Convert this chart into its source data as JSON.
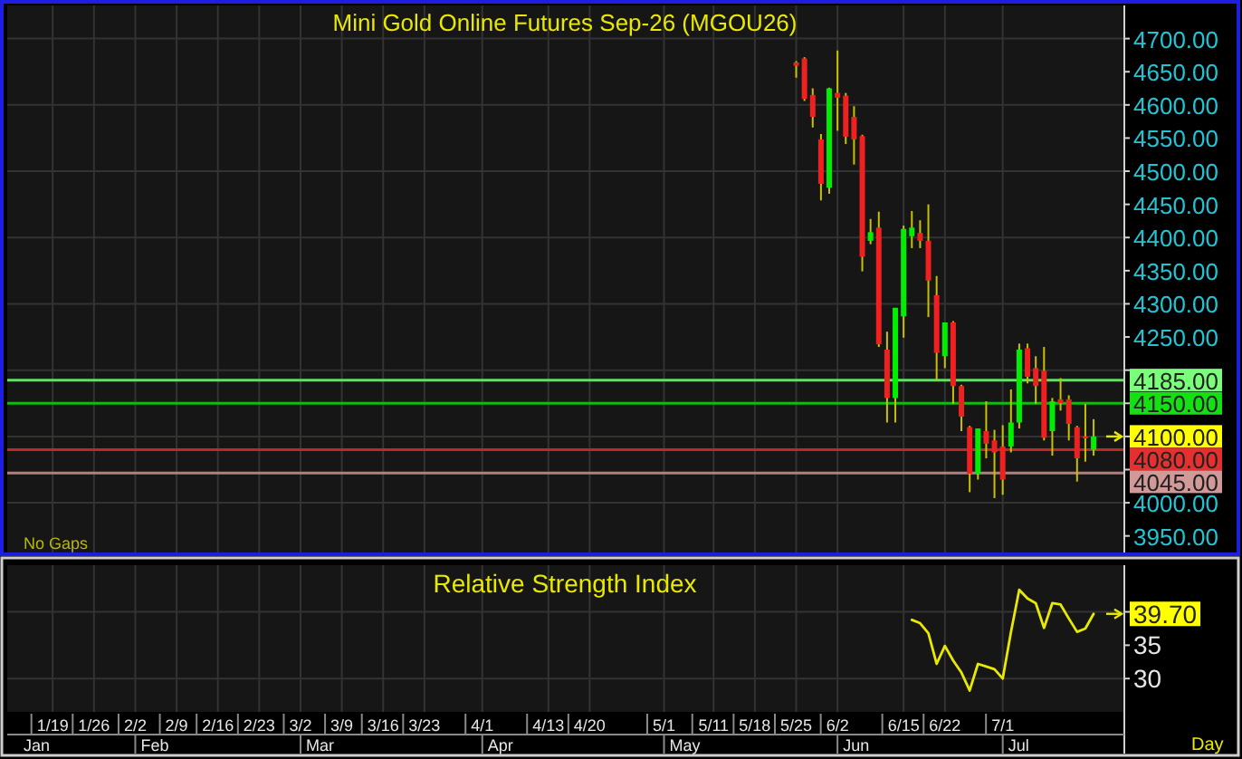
{
  "chart_data": [
    {
      "type": "candlestick",
      "title": "Mini Gold Online Futures Sep-26 (MGOU26)",
      "categories": [
        null,
        null,
        null,
        null,
        null,
        null,
        null,
        null,
        null,
        null,
        null,
        null,
        null,
        null,
        null,
        null,
        null,
        null,
        null,
        null,
        null,
        null,
        null,
        null,
        null,
        null,
        null,
        null,
        null,
        null,
        null,
        null,
        null,
        null,
        null,
        null,
        null,
        null,
        null,
        null,
        null,
        null,
        null,
        null,
        null,
        null,
        null,
        null,
        null,
        null,
        null,
        null,
        null,
        null,
        null,
        null,
        null,
        null,
        null,
        null,
        null,
        null,
        null,
        null,
        null,
        null,
        null,
        null,
        null,
        null,
        null,
        null,
        null,
        null,
        null,
        null,
        null,
        null,
        null,
        null,
        null,
        null,
        null,
        null,
        null,
        null,
        null,
        null,
        null,
        null,
        null,
        null,
        null,
        null,
        null,
        null,
        null,
        null,
        null,
        null,
        null,
        null,
        null,
        null,
        null,
        null,
        null,
        null,
        null,
        null,
        null,
        null,
        null,
        null,
        null,
        null,
        null,
        null,
        null,
        null,
        null,
        null,
        null,
        null,
        null,
        null,
        null,
        null,
        null,
        null,
        null,
        null,
        null,
        null,
        null
      ],
      "ohlc": [
        null,
        null,
        null,
        null,
        null,
        null,
        null,
        null,
        null,
        null,
        null,
        null,
        null,
        null,
        null,
        null,
        null,
        null,
        null,
        null,
        null,
        null,
        null,
        null,
        null,
        null,
        null,
        null,
        null,
        null,
        null,
        null,
        null,
        null,
        null,
        null,
        null,
        null,
        null,
        null,
        null,
        null,
        null,
        null,
        null,
        null,
        null,
        null,
        null,
        null,
        null,
        null,
        null,
        null,
        null,
        null,
        null,
        null,
        null,
        null,
        null,
        null,
        null,
        null,
        null,
        null,
        null,
        null,
        null,
        null,
        null,
        null,
        null,
        null,
        null,
        null,
        null,
        null,
        null,
        null,
        null,
        null,
        null,
        null,
        null,
        null,
        null,
        null,
        null,
        null,
        null,
        null,
        null,
        null,
        null,
        [
          4664,
          4666,
          4641,
          4659
        ],
        [
          4670,
          4672,
          4606,
          4609
        ],
        [
          4615,
          4625,
          4566,
          4582
        ],
        [
          4548,
          4556,
          4456,
          4481
        ],
        [
          4475,
          4626,
          4466,
          4625
        ],
        [
          4618,
          4682,
          4561,
          4611
        ],
        [
          4614,
          4618,
          4541,
          4552
        ],
        [
          4582,
          4598,
          4510,
          4548
        ],
        [
          4553,
          4555,
          4349,
          4371
        ],
        [
          4395,
          4428,
          4390,
          4408
        ],
        [
          4415,
          4439,
          4235,
          4239
        ],
        [
          4231,
          4258,
          4121,
          4158
        ],
        [
          4158,
          4294,
          4121,
          4294
        ],
        [
          4281,
          4418,
          4249,
          4413
        ],
        [
          4402,
          4440,
          4384,
          4415
        ],
        [
          4407,
          4426,
          4384,
          4395
        ],
        [
          4395,
          4450,
          4280,
          4335
        ],
        [
          4313,
          4342,
          4184,
          4226
        ],
        [
          4221,
          4272,
          4203,
          4272
        ],
        [
          4272,
          4274,
          4149,
          4176
        ],
        [
          4176,
          4178,
          4108,
          4130
        ],
        [
          4114,
          4116,
          4016,
          4044
        ],
        [
          4044,
          4112,
          4035,
          4112
        ],
        [
          4108,
          4153,
          4067,
          4089
        ],
        [
          4094,
          4110,
          4007,
          4076
        ],
        [
          4085,
          4117,
          4012,
          4035
        ],
        [
          4085,
          4171,
          4076,
          4121
        ],
        [
          4121,
          4240,
          4112,
          4231
        ],
        [
          4233,
          4240,
          4180,
          4190
        ],
        [
          4203,
          4221,
          4149,
          4176
        ],
        [
          4199,
          4235,
          4094,
          4098
        ],
        [
          4108,
          4158,
          4071,
          4153
        ],
        [
          4156,
          4188,
          4139,
          4150
        ],
        [
          4156,
          4162,
          4094,
          4119
        ],
        [
          4114,
          4116,
          4032,
          4067
        ],
        [
          4100,
          4149,
          4062,
          4100
        ],
        [
          4080,
          4126,
          4071,
          4100
        ],
        null,
        null,
        null
      ],
      "colors": [
        null,
        null,
        null,
        null,
        null,
        null,
        null,
        null,
        null,
        null,
        null,
        null,
        null,
        null,
        null,
        null,
        null,
        null,
        null,
        null,
        null,
        null,
        null,
        null,
        null,
        null,
        null,
        null,
        null,
        null,
        null,
        null,
        null,
        null,
        null,
        null,
        null,
        null,
        null,
        null,
        null,
        null,
        null,
        null,
        null,
        null,
        null,
        null,
        null,
        null,
        null,
        null,
        null,
        null,
        null,
        null,
        null,
        null,
        null,
        null,
        null,
        null,
        null,
        null,
        null,
        null,
        null,
        null,
        null,
        null,
        null,
        null,
        null,
        null,
        null,
        null,
        null,
        null,
        null,
        null,
        null,
        null,
        null,
        null,
        null,
        null,
        null,
        null,
        null,
        null,
        null,
        null,
        null,
        null,
        null,
        "#ee2020",
        "#ee2020",
        "#ee2020",
        "#ee2020",
        "#00ee00",
        "#ee2020",
        "#ee2020",
        "#ee2020",
        "#ee2020",
        "#00ee00",
        "#ee2020",
        "#ee2020",
        "#00ee00",
        "#00ee00",
        "#00ee00",
        "#ee2020",
        "#ee2020",
        "#ee2020",
        "#00ee00",
        "#ee2020",
        "#ee2020",
        "#ee2020",
        "#00ee00",
        "#ee2020",
        "#ee2020",
        "#ee2020",
        "#00ee00",
        "#00ee00",
        "#ee2020",
        "#ee2020",
        "#ee2020",
        "#00ee00",
        "#ee2020",
        "#ee2020",
        "#ee2020",
        "#ee2020",
        "#00ee00",
        null,
        null,
        null
      ],
      "value_labels": [
        null,
        null,
        null,
        null,
        null,
        null,
        null,
        null,
        null,
        null,
        null,
        null,
        null,
        null,
        null,
        null,
        null,
        null,
        null,
        null,
        null,
        null,
        null,
        null,
        null,
        null,
        null,
        null,
        null,
        null,
        null,
        null,
        null,
        null,
        null,
        null,
        null,
        null,
        null,
        null,
        null,
        null,
        null,
        null,
        null,
        null,
        null,
        null,
        null,
        null,
        null,
        null,
        null,
        null,
        null,
        null,
        null,
        null,
        null,
        null,
        null,
        null,
        null,
        null,
        null,
        null,
        null,
        null,
        null,
        null,
        null,
        null,
        null,
        null,
        null,
        null,
        null,
        null,
        null,
        null,
        null,
        null,
        null,
        null,
        null,
        null,
        null,
        null,
        null,
        null,
        null,
        null,
        null,
        null,
        null,
        null,
        null,
        null,
        null,
        null,
        null,
        null,
        null,
        null,
        null,
        null,
        null,
        null,
        null,
        null,
        null,
        null,
        null,
        null,
        null,
        null,
        null,
        null,
        null,
        null,
        null,
        null,
        null,
        null,
        null,
        null,
        null,
        null,
        null,
        null,
        null,
        "4100.00",
        null,
        null,
        null
      ],
      "color": "#c8c000",
      "ylim": [
        3925,
        4750
      ],
      "yticks": [
        {
          "value": 3950,
          "label": "3950.00"
        },
        {
          "value": 4000,
          "label": "4000.00"
        },
        {
          "value": 4050,
          "label": null
        },
        {
          "value": 4100,
          "label": null
        },
        {
          "value": 4150,
          "label": null
        },
        {
          "value": 4200,
          "label": null
        },
        {
          "value": 4250,
          "label": "4250.00"
        },
        {
          "value": 4300,
          "label": "4300.00"
        },
        {
          "value": 4350,
          "label": "4350.00"
        },
        {
          "value": 4400,
          "label": "4400.00"
        },
        {
          "value": 4450,
          "label": "4450.00"
        },
        {
          "value": 4500,
          "label": "4500.00"
        },
        {
          "value": 4550,
          "label": "4550.00"
        },
        {
          "value": 4600,
          "label": "4600.00"
        },
        {
          "value": 4650,
          "label": "4650.00"
        },
        {
          "value": 4700,
          "label": "4700.00"
        }
      ],
      "grid": true,
      "tick_labels": "y",
      "ref_lines": [
        {
          "axis": "y",
          "value": 4185,
          "label": "4185.00",
          "color": "#66dd66"
        },
        {
          "axis": "y",
          "value": 4150,
          "label": "4150.00",
          "color": "#11bb11"
        },
        {
          "axis": "y",
          "value": 4080,
          "label": "4080.00",
          "color": "#c02828"
        },
        {
          "axis": "y",
          "value": 4045,
          "label": "4045.00",
          "color": "#b08080"
        }
      ],
      "annotations": [
        "No Gaps"
      ]
    },
    {
      "type": "line",
      "title": "Relative Strength Index",
      "categories": [
        null,
        null,
        null,
        null,
        null,
        "1/19",
        null,
        null,
        null,
        null,
        "1/26",
        null,
        null,
        null,
        null,
        "2/2",
        null,
        null,
        null,
        null,
        "2/9",
        null,
        null,
        null,
        null,
        "2/16",
        null,
        null,
        null,
        null,
        "2/23",
        null,
        null,
        null,
        null,
        "3/2",
        null,
        null,
        null,
        null,
        "3/9",
        null,
        null,
        null,
        null,
        "3/16",
        null,
        null,
        null,
        null,
        "3/23",
        null,
        null,
        null,
        null,
        null,
        null,
        "4/1",
        null,
        null,
        null,
        null,
        null,
        null,
        null,
        "4/13",
        null,
        null,
        null,
        null,
        "4/20",
        null,
        null,
        null,
        null,
        null,
        null,
        null,
        null,
        "5/1",
        null,
        null,
        null,
        null,
        null,
        "5/11",
        null,
        null,
        null,
        null,
        "5/18",
        null,
        null,
        null,
        null,
        "5/25",
        null,
        null,
        null,
        null,
        "6/2",
        null,
        null,
        null,
        null,
        null,
        null,
        null,
        "6/15",
        null,
        null,
        null,
        null,
        "6/22",
        null,
        null,
        null,
        null,
        null,
        null,
        "7/1",
        null,
        null,
        null,
        null,
        null,
        null,
        null,
        null,
        null,
        null,
        null,
        null,
        null,
        null
      ],
      "values": [
        null,
        null,
        null,
        null,
        null,
        null,
        null,
        null,
        null,
        null,
        null,
        null,
        null,
        null,
        null,
        null,
        null,
        null,
        null,
        null,
        null,
        null,
        null,
        null,
        null,
        null,
        null,
        null,
        null,
        null,
        null,
        null,
        null,
        null,
        null,
        null,
        null,
        null,
        null,
        null,
        null,
        null,
        null,
        null,
        null,
        null,
        null,
        null,
        null,
        null,
        null,
        null,
        null,
        null,
        null,
        null,
        null,
        null,
        null,
        null,
        null,
        null,
        null,
        null,
        null,
        null,
        null,
        null,
        null,
        null,
        null,
        null,
        null,
        null,
        null,
        null,
        null,
        null,
        null,
        null,
        null,
        null,
        null,
        null,
        null,
        null,
        null,
        null,
        null,
        null,
        null,
        null,
        null,
        null,
        null,
        null,
        null,
        null,
        null,
        null,
        null,
        null,
        null,
        null,
        null,
        null,
        null,
        null,
        null,
        38.8,
        38.3,
        36.8,
        32.2,
        34.9,
        32.7,
        30.9,
        28.2,
        32.2,
        31.8,
        31.4,
        30.0,
        37.0,
        43.3,
        42.0,
        41.3,
        37.6,
        41.3,
        41.1,
        39.0,
        37.0,
        37.5,
        39.7,
        null,
        null,
        null
      ],
      "value_labels": [
        null,
        null,
        null,
        null,
        null,
        null,
        null,
        null,
        null,
        null,
        null,
        null,
        null,
        null,
        null,
        null,
        null,
        null,
        null,
        null,
        null,
        null,
        null,
        null,
        null,
        null,
        null,
        null,
        null,
        null,
        null,
        null,
        null,
        null,
        null,
        null,
        null,
        null,
        null,
        null,
        null,
        null,
        null,
        null,
        null,
        null,
        null,
        null,
        null,
        null,
        null,
        null,
        null,
        null,
        null,
        null,
        null,
        null,
        null,
        null,
        null,
        null,
        null,
        null,
        null,
        null,
        null,
        null,
        null,
        null,
        null,
        null,
        null,
        null,
        null,
        null,
        null,
        null,
        null,
        null,
        null,
        null,
        null,
        null,
        null,
        null,
        null,
        null,
        null,
        null,
        null,
        null,
        null,
        null,
        null,
        null,
        null,
        null,
        null,
        null,
        null,
        null,
        null,
        null,
        null,
        null,
        null,
        null,
        null,
        null,
        null,
        null,
        null,
        null,
        null,
        null,
        null,
        null,
        null,
        null,
        null,
        null,
        null,
        null,
        null,
        null,
        null,
        null,
        null,
        null,
        null,
        "39.70",
        null,
        null,
        null
      ],
      "color": "#e8e800",
      "ylim": [
        25,
        47
      ],
      "yticks": [
        30,
        35,
        {
          "value": 40,
          "label": null
        }
      ],
      "grid": true,
      "xlabel": "Day",
      "annotations": [
        "Jan",
        "Feb",
        "Mar",
        "Apr",
        "May",
        "Jun",
        "Jul"
      ]
    }
  ]
}
